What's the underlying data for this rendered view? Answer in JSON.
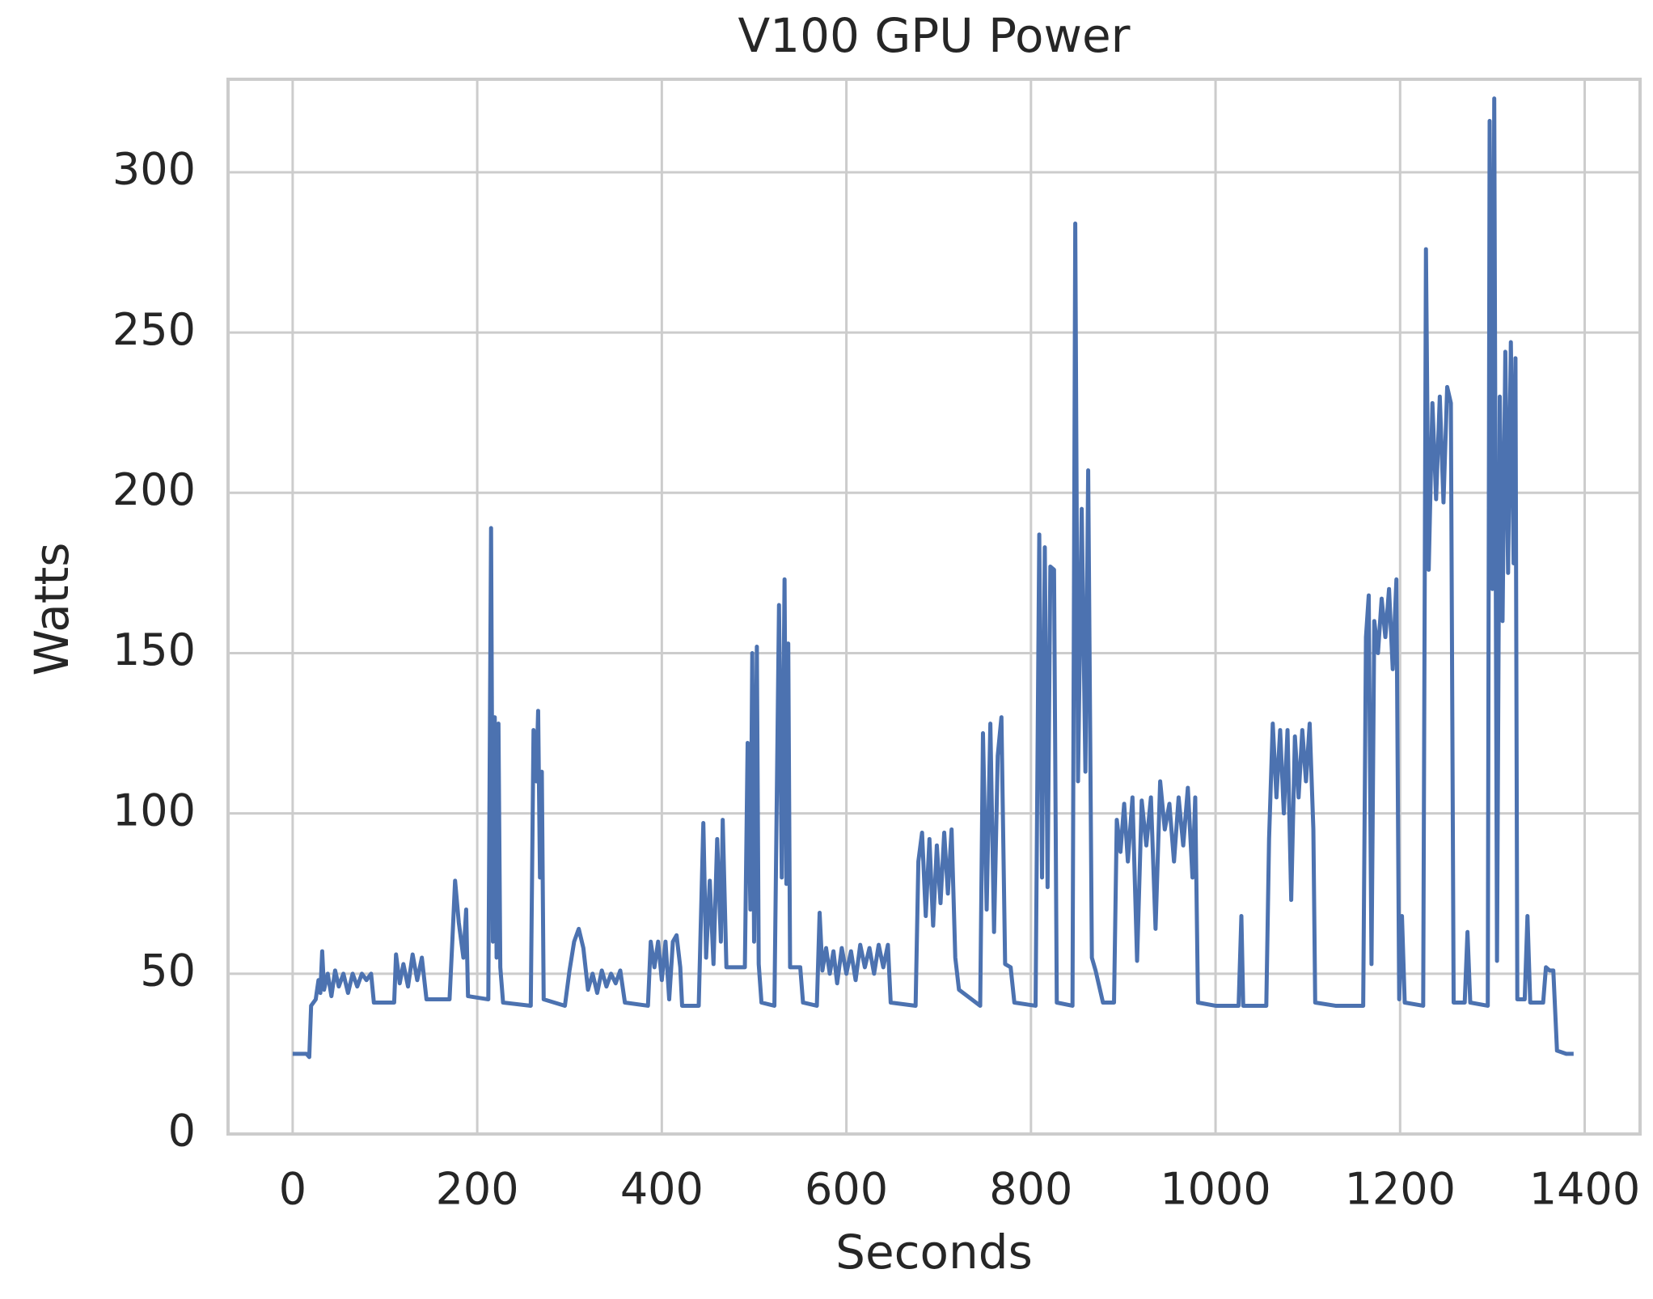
{
  "chart_data": {
    "type": "line",
    "title": "V100 GPU Power",
    "x_label": "Seconds",
    "y_label": "Watts",
    "xlim": [
      -70,
      1460
    ],
    "ylim": [
      0,
      329
    ],
    "xticks": [
      0,
      200,
      400,
      600,
      800,
      1000,
      1200,
      1400
    ],
    "yticks": [
      0,
      50,
      100,
      150,
      200,
      250,
      300
    ],
    "grid": true,
    "x": [
      0,
      15,
      18,
      20,
      25,
      28,
      30,
      32,
      34,
      38,
      42,
      46,
      50,
      55,
      60,
      65,
      70,
      75,
      80,
      85,
      88,
      110,
      112,
      116,
      120,
      125,
      130,
      135,
      140,
      145,
      170,
      173,
      176,
      180,
      185,
      188,
      190,
      212,
      215,
      217,
      219,
      221,
      223,
      225,
      228,
      258,
      261,
      264,
      266,
      268,
      270,
      272,
      295,
      300,
      305,
      310,
      315,
      320,
      325,
      330,
      335,
      340,
      345,
      350,
      355,
      360,
      385,
      388,
      392,
      396,
      400,
      404,
      408,
      412,
      416,
      420,
      422,
      440,
      445,
      448,
      452,
      456,
      460,
      464,
      466,
      470,
      490,
      493,
      496,
      498,
      500,
      503,
      505,
      508,
      522,
      527,
      530,
      533,
      535,
      537,
      539,
      550,
      553,
      568,
      571,
      574,
      578,
      582,
      586,
      590,
      595,
      600,
      605,
      610,
      615,
      620,
      625,
      630,
      635,
      640,
      645,
      648,
      675,
      678,
      682,
      686,
      690,
      694,
      698,
      702,
      706,
      710,
      714,
      718,
      722,
      745,
      748,
      752,
      756,
      760,
      764,
      768,
      772,
      778,
      782,
      805,
      809,
      812,
      815,
      818,
      821,
      825,
      828,
      845,
      848,
      851,
      855,
      859,
      862,
      866,
      870,
      878,
      890,
      893,
      897,
      901,
      905,
      910,
      915,
      920,
      925,
      930,
      935,
      940,
      945,
      950,
      955,
      960,
      965,
      970,
      975,
      978,
      981,
      1000,
      1025,
      1028,
      1030,
      1055,
      1058,
      1062,
      1066,
      1070,
      1074,
      1078,
      1082,
      1086,
      1090,
      1094,
      1098,
      1102,
      1106,
      1108,
      1130,
      1160,
      1163,
      1166,
      1169,
      1172,
      1176,
      1180,
      1184,
      1188,
      1192,
      1196,
      1199,
      1202,
      1205,
      1225,
      1228,
      1231,
      1235,
      1239,
      1243,
      1247,
      1251,
      1255,
      1258,
      1270,
      1273,
      1276,
      1295,
      1297,
      1300,
      1302,
      1305,
      1308,
      1311,
      1314,
      1317,
      1320,
      1323,
      1325,
      1327,
      1335,
      1338,
      1341,
      1355,
      1358,
      1362,
      1366,
      1370,
      1380,
      1388
    ],
    "series": [
      {
        "name": "Power",
        "color": "#4c72b0",
        "values": [
          25,
          25,
          24,
          40,
          42,
          48,
          44,
          57,
          45,
          50,
          43,
          51,
          46,
          50,
          44,
          50,
          46,
          50,
          48,
          50,
          41,
          41,
          56,
          47,
          53,
          46,
          56,
          48,
          55,
          42,
          42,
          60,
          79,
          66,
          55,
          70,
          43,
          42,
          189,
          60,
          130,
          55,
          128,
          52,
          41,
          40,
          126,
          110,
          132,
          80,
          113,
          42,
          40,
          51,
          60,
          64,
          58,
          45,
          50,
          44,
          51,
          46,
          50,
          47,
          51,
          41,
          40,
          60,
          52,
          60,
          48,
          60,
          42,
          60,
          62,
          52,
          40,
          40,
          97,
          55,
          79,
          53,
          92,
          60,
          98,
          52,
          52,
          122,
          70,
          150,
          60,
          152,
          53,
          41,
          40,
          165,
          80,
          173,
          78,
          153,
          52,
          52,
          41,
          40,
          69,
          51,
          58,
          50,
          57,
          47,
          58,
          50,
          57,
          48,
          59,
          52,
          58,
          50,
          59,
          52,
          59,
          41,
          40,
          85,
          94,
          68,
          92,
          65,
          90,
          72,
          94,
          75,
          95,
          55,
          45,
          40,
          125,
          70,
          128,
          63,
          118,
          130,
          53,
          52,
          41,
          40,
          187,
          80,
          183,
          77,
          177,
          176,
          41,
          40,
          284,
          110,
          195,
          113,
          207,
          55,
          51,
          41,
          41,
          98,
          88,
          103,
          85,
          105,
          54,
          104,
          90,
          105,
          64,
          110,
          95,
          103,
          85,
          105,
          90,
          108,
          80,
          105,
          41,
          40,
          40,
          68,
          40,
          40,
          92,
          128,
          105,
          126,
          100,
          126,
          73,
          124,
          105,
          126,
          110,
          128,
          95,
          41,
          40,
          40,
          155,
          168,
          53,
          160,
          150,
          167,
          155,
          170,
          145,
          173,
          42,
          68,
          41,
          40,
          276,
          176,
          228,
          198,
          230,
          197,
          233,
          228,
          41,
          41,
          63,
          41,
          40,
          316,
          170,
          323,
          54,
          230,
          160,
          244,
          175,
          247,
          178,
          242,
          42,
          42,
          68,
          41,
          41,
          52,
          51,
          51,
          26,
          25,
          25
        ]
      }
    ]
  }
}
